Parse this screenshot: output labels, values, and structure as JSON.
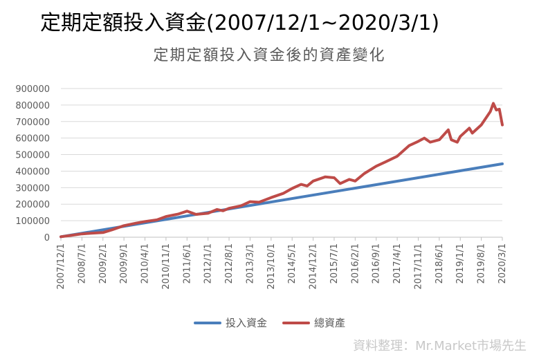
{
  "heading": "定期定額投入資金(2007/12/1~2020/3/1)",
  "source_note": "資料整理：Mr.Market市場先生",
  "colors": {
    "invested": "#4a7ebb",
    "total": "#be4b48",
    "grid": "#d9d9d9",
    "axis_text": "#595959"
  },
  "chart_data": {
    "type": "line",
    "title": "定期定額投入資金後的資產變化",
    "xlabel": "",
    "ylabel": "",
    "ylim": [
      0,
      900000
    ],
    "yticks": [
      0,
      100000,
      200000,
      300000,
      400000,
      500000,
      600000,
      700000,
      800000,
      900000
    ],
    "xticks": [
      "2007/12/1",
      "2008/7/1",
      "2009/2/1",
      "2009/9/1",
      "2010/4/1",
      "2010/11/1",
      "2011/6/1",
      "2012/1/1",
      "2012/8/1",
      "2013/3/1",
      "2013/10/1",
      "2014/5/1",
      "2014/12/1",
      "2015/7/1",
      "2016/2/1",
      "2016/9/1",
      "2017/4/1",
      "2017/11/1",
      "2018/6/1",
      "2019/1/1",
      "2019/8/1",
      "2020/3/1"
    ],
    "grid": true,
    "legend_position": "bottom",
    "series": [
      {
        "name": "投入資金",
        "color": "#4a7ebb",
        "points": [
          [
            "2007/12/1",
            3000
          ],
          [
            "2020/3/1",
            444000
          ]
        ]
      },
      {
        "name": "總資產",
        "color": "#be4b48",
        "points": [
          [
            "2007/12/1",
            3000
          ],
          [
            "2008/3/1",
            10000
          ],
          [
            "2008/7/1",
            20000
          ],
          [
            "2008/10/1",
            24000
          ],
          [
            "2009/2/1",
            28000
          ],
          [
            "2009/5/1",
            45000
          ],
          [
            "2009/9/1",
            70000
          ],
          [
            "2010/1/1",
            85000
          ],
          [
            "2010/4/1",
            95000
          ],
          [
            "2010/8/1",
            105000
          ],
          [
            "2010/11/1",
            125000
          ],
          [
            "2011/3/1",
            140000
          ],
          [
            "2011/6/1",
            158000
          ],
          [
            "2011/9/1",
            138000
          ],
          [
            "2012/1/1",
            145000
          ],
          [
            "2012/4/1",
            168000
          ],
          [
            "2012/6/1",
            160000
          ],
          [
            "2012/8/1",
            175000
          ],
          [
            "2012/12/1",
            190000
          ],
          [
            "2013/3/1",
            215000
          ],
          [
            "2013/6/1",
            212000
          ],
          [
            "2013/10/1",
            240000
          ],
          [
            "2014/2/1",
            265000
          ],
          [
            "2014/5/1",
            295000
          ],
          [
            "2014/8/1",
            320000
          ],
          [
            "2014/10/1",
            310000
          ],
          [
            "2014/12/1",
            340000
          ],
          [
            "2015/4/1",
            365000
          ],
          [
            "2015/7/1",
            360000
          ],
          [
            "2015/9/1",
            325000
          ],
          [
            "2015/12/1",
            350000
          ],
          [
            "2016/2/1",
            340000
          ],
          [
            "2016/5/1",
            385000
          ],
          [
            "2016/9/1",
            430000
          ],
          [
            "2016/12/1",
            455000
          ],
          [
            "2017/4/1",
            490000
          ],
          [
            "2017/8/1",
            555000
          ],
          [
            "2017/11/1",
            580000
          ],
          [
            "2018/1/1",
            600000
          ],
          [
            "2018/3/1",
            575000
          ],
          [
            "2018/6/1",
            590000
          ],
          [
            "2018/9/1",
            650000
          ],
          [
            "2018/10/1",
            590000
          ],
          [
            "2018/12/1",
            575000
          ],
          [
            "2019/1/1",
            610000
          ],
          [
            "2019/4/1",
            660000
          ],
          [
            "2019/5/1",
            630000
          ],
          [
            "2019/8/1",
            680000
          ],
          [
            "2019/11/1",
            760000
          ],
          [
            "2019/12/1",
            810000
          ],
          [
            "2020/1/1",
            770000
          ],
          [
            "2020/2/1",
            775000
          ],
          [
            "2020/3/1",
            680000
          ]
        ]
      }
    ]
  }
}
